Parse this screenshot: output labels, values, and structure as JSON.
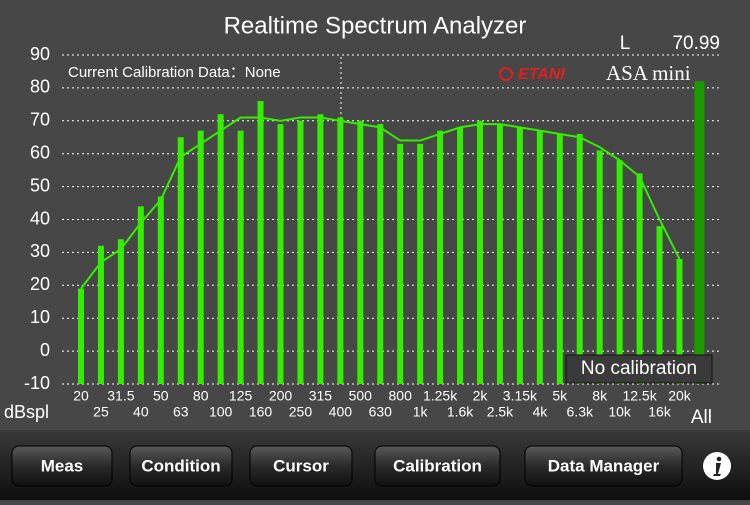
{
  "title": "Realtime Spectrum Analyzer",
  "level": {
    "channel": "L",
    "value": 70.99
  },
  "logo": {
    "brand": "ETANI",
    "product": "ASA mini"
  },
  "chart_data": {
    "type": "bar",
    "y_label": "dBspl",
    "categories": [
      "20",
      "25",
      "31.5",
      "40",
      "50",
      "63",
      "80",
      "100",
      "125",
      "160",
      "200",
      "250",
      "315",
      "400",
      "500",
      "630",
      "800",
      "1k",
      "1.25k",
      "1.6k",
      "2k",
      "2.5k",
      "3.15k",
      "4k",
      "5k",
      "6.3k",
      "8k",
      "10k",
      "12.5k",
      "16k",
      "20k",
      "All"
    ],
    "values": [
      19,
      32,
      34,
      44,
      47,
      65,
      67,
      72,
      67,
      76,
      69,
      70,
      72,
      71,
      70,
      69,
      63,
      63,
      67,
      68,
      70,
      69,
      68,
      67,
      66,
      66,
      61,
      58,
      54,
      38,
      28,
      82
    ],
    "color": "#33ee00",
    "total_color": "#1c9a00",
    "line": {
      "color": "#33ee00",
      "values": [
        19,
        27,
        31,
        39,
        46,
        59,
        63,
        67,
        71,
        71,
        70,
        71,
        71,
        70,
        69,
        68,
        64,
        64,
        66,
        68,
        69,
        69,
        68,
        67,
        66,
        65,
        62,
        58,
        53,
        40,
        28,
        null
      ]
    },
    "ylim": [
      -10,
      90
    ],
    "yticks": [
      -10,
      0,
      10,
      20,
      30,
      40,
      50,
      60,
      70,
      80,
      90
    ],
    "grid": true,
    "annotations": [
      "Current Calibration Data：None",
      "No calibration"
    ]
  },
  "toolbar": {
    "buttons": [
      "Meas",
      "Condition",
      "Cursor",
      "Calibration",
      "Data Manager"
    ]
  }
}
